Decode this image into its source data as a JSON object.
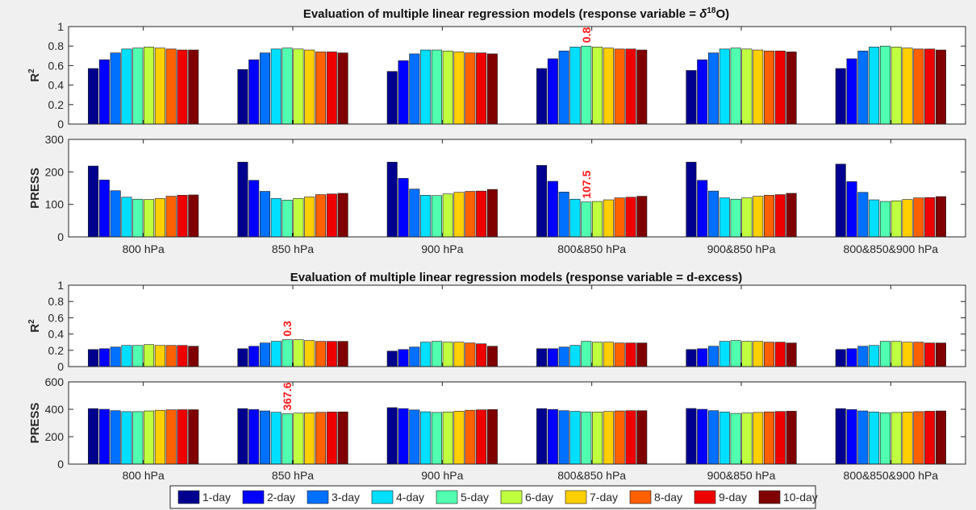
{
  "categories": [
    "800 hPa",
    "850 hPa",
    "900 hPa",
    "800&850 hPa",
    "900&850 hPa",
    "800&850&900 hPa"
  ],
  "series_names": [
    "1-day",
    "2-day",
    "3-day",
    "4-day",
    "5-day",
    "6-day",
    "7-day",
    "8-day",
    "9-day",
    "10-day"
  ],
  "colors": [
    "#00008f",
    "#0000ff",
    "#0070ff",
    "#00dfff",
    "#50ffaf",
    "#bfff40",
    "#ffcf00",
    "#ff6000",
    "#ef0000",
    "#800000"
  ],
  "annotation_color": "#ff1a1a",
  "legend": {
    "position": "bottom-center"
  },
  "section_titles": {
    "top_prefix": "Evaluation of multiple linear regression models (response variable = ",
    "top_delta": "δ",
    "top_sup": "18",
    "top_suffix": "O)",
    "bottom": "Evaluation of multiple linear regression models (response variable = d-excess)"
  },
  "ylabels": {
    "r2_base": "R",
    "r2_sup": "2",
    "press": "PRESS"
  },
  "chart_data": [
    {
      "type": "bar",
      "panel": "d18O_R2",
      "ylabel": "R2",
      "ylim": [
        0,
        1
      ],
      "yticks": [
        0,
        0.2,
        0.4,
        0.6,
        0.8,
        1
      ],
      "ytick_labels": [
        "0",
        "0.2",
        "0.4",
        "0.6",
        "0.8",
        "1"
      ],
      "values": [
        [
          0.57,
          0.66,
          0.73,
          0.77,
          0.78,
          0.79,
          0.78,
          0.77,
          0.76,
          0.76
        ],
        [
          0.56,
          0.66,
          0.73,
          0.77,
          0.78,
          0.77,
          0.76,
          0.74,
          0.74,
          0.73
        ],
        [
          0.54,
          0.65,
          0.72,
          0.76,
          0.76,
          0.75,
          0.74,
          0.73,
          0.73,
          0.72
        ],
        [
          0.57,
          0.67,
          0.75,
          0.79,
          0.8,
          0.79,
          0.78,
          0.77,
          0.77,
          0.76
        ],
        [
          0.55,
          0.66,
          0.73,
          0.77,
          0.78,
          0.77,
          0.76,
          0.75,
          0.75,
          0.74
        ],
        [
          0.57,
          0.67,
          0.75,
          0.79,
          0.8,
          0.79,
          0.78,
          0.77,
          0.77,
          0.76
        ]
      ],
      "annotation": {
        "text": "0.8",
        "group": 3,
        "series": 4
      }
    },
    {
      "type": "bar",
      "panel": "d18O_PRESS",
      "ylabel": "PRESS",
      "ylim": [
        0,
        300
      ],
      "yticks": [
        0,
        100,
        200,
        300
      ],
      "ytick_labels": [
        "0",
        "100",
        "200",
        "300"
      ],
      "values": [
        [
          218,
          175,
          142,
          122,
          116,
          115,
          118,
          125,
          128,
          129
        ],
        [
          230,
          174,
          140,
          118,
          113,
          118,
          123,
          130,
          132,
          134
        ],
        [
          230,
          180,
          147,
          128,
          127,
          132,
          137,
          140,
          141,
          146
        ],
        [
          220,
          171,
          138,
          116,
          107.5,
          109,
          114,
          120,
          122,
          125
        ],
        [
          230,
          174,
          141,
          120,
          116,
          120,
          125,
          128,
          130,
          134
        ],
        [
          224,
          170,
          137,
          114,
          109,
          111,
          115,
          120,
          121,
          124
        ]
      ],
      "annotation": {
        "text": "107.5",
        "group": 3,
        "series": 4
      }
    },
    {
      "type": "bar",
      "panel": "dexcess_R2",
      "ylabel": "R2",
      "ylim": [
        0,
        1
      ],
      "yticks": [
        0,
        0.2,
        0.4,
        0.6,
        0.8,
        1
      ],
      "ytick_labels": [
        "0",
        "0.2",
        "0.4",
        "0.6",
        "0.8",
        "1"
      ],
      "values": [
        [
          0.21,
          0.22,
          0.24,
          0.26,
          0.26,
          0.27,
          0.26,
          0.26,
          0.26,
          0.25
        ],
        [
          0.22,
          0.25,
          0.29,
          0.31,
          0.33,
          0.33,
          0.32,
          0.31,
          0.31,
          0.31
        ],
        [
          0.19,
          0.21,
          0.24,
          0.3,
          0.31,
          0.3,
          0.3,
          0.29,
          0.28,
          0.25
        ],
        [
          0.22,
          0.22,
          0.24,
          0.26,
          0.31,
          0.3,
          0.3,
          0.29,
          0.29,
          0.29
        ],
        [
          0.21,
          0.22,
          0.25,
          0.31,
          0.32,
          0.31,
          0.31,
          0.3,
          0.3,
          0.29
        ],
        [
          0.21,
          0.22,
          0.25,
          0.26,
          0.31,
          0.31,
          0.3,
          0.3,
          0.29,
          0.29
        ]
      ],
      "annotation": {
        "text": "0.3",
        "group": 1,
        "series": 4
      }
    },
    {
      "type": "bar",
      "panel": "dexcess_PRESS",
      "ylabel": "PRESS",
      "ylim": [
        0,
        600
      ],
      "yticks": [
        0,
        200,
        400,
        600
      ],
      "ytick_labels": [
        "0",
        "200",
        "400",
        "600"
      ],
      "values": [
        [
          405,
          400,
          390,
          383,
          383,
          388,
          393,
          396,
          397,
          397
        ],
        [
          405,
          398,
          388,
          378,
          367.6,
          372,
          374,
          378,
          380,
          381
        ],
        [
          412,
          405,
          395,
          382,
          377,
          380,
          386,
          393,
          396,
          398
        ],
        [
          405,
          399,
          390,
          385,
          381,
          380,
          384,
          388,
          390,
          390
        ],
        [
          406,
          400,
          390,
          380,
          370,
          373,
          377,
          381,
          384,
          386
        ],
        [
          405,
          398,
          388,
          380,
          375,
          377,
          380,
          383,
          386,
          388
        ]
      ],
      "annotation": {
        "text": "367.6",
        "group": 1,
        "series": 4
      }
    }
  ]
}
